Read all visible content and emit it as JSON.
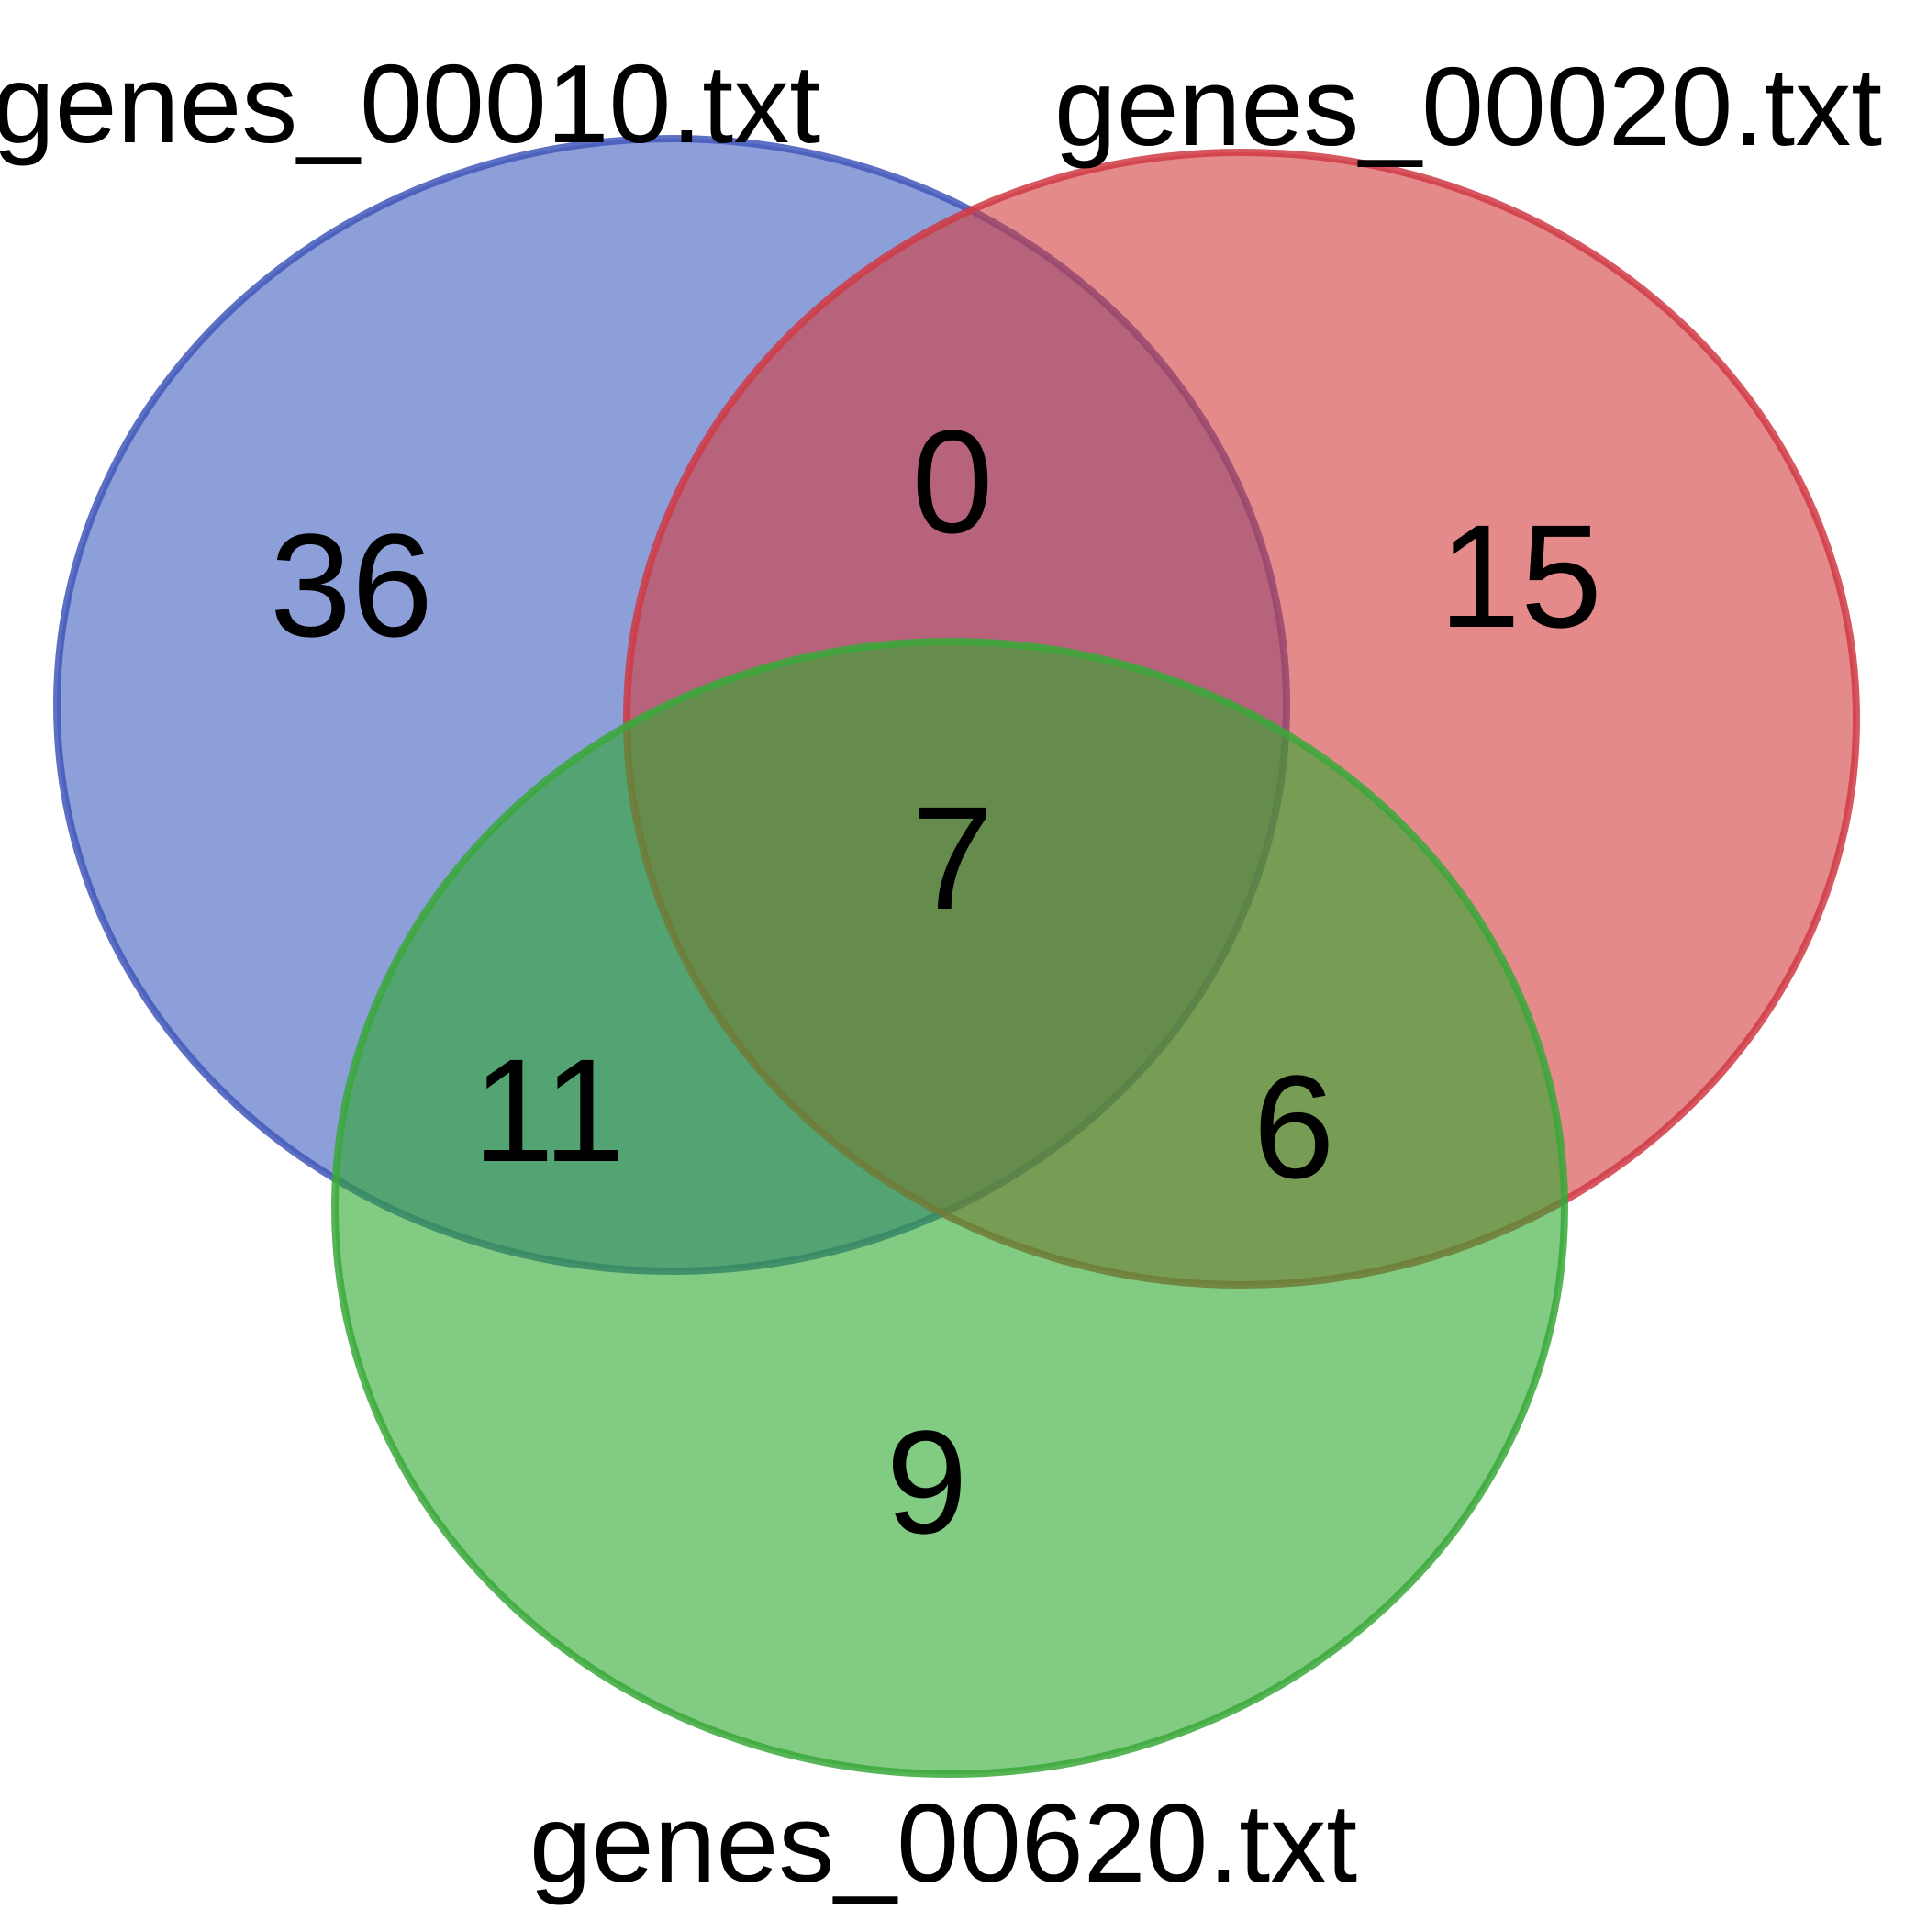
{
  "diagram": {
    "type": "venn",
    "sets": [
      {
        "id": "A",
        "label": "genes_00010.txt",
        "fill": "#3f5fbf",
        "stroke": "#4257b8"
      },
      {
        "id": "B",
        "label": "genes_00020.txt",
        "fill": "#d23c3c",
        "stroke": "#d03a44"
      },
      {
        "id": "C",
        "label": "genes_00620.txt",
        "fill": "#2fa82f",
        "stroke": "#3aa83a"
      }
    ],
    "regions": [
      {
        "sets": [
          "A"
        ],
        "count": "36"
      },
      {
        "sets": [
          "B"
        ],
        "count": "15"
      },
      {
        "sets": [
          "C"
        ],
        "count": "9"
      },
      {
        "sets": [
          "A",
          "B"
        ],
        "count": "0"
      },
      {
        "sets": [
          "A",
          "C"
        ],
        "count": "11"
      },
      {
        "sets": [
          "B",
          "C"
        ],
        "count": "6"
      },
      {
        "sets": [
          "A",
          "B",
          "C"
        ],
        "count": "7"
      }
    ]
  }
}
